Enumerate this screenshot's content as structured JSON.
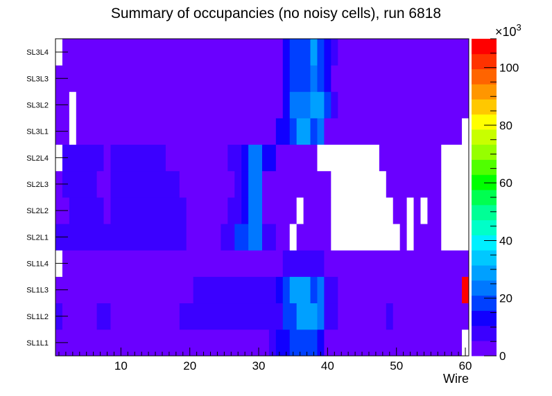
{
  "chart_data": {
    "type": "heatmap",
    "title": "Summary of occupancies (no noisy cells), run 6818",
    "xlabel": "Wire",
    "ylabel": "",
    "x_range": [
      0.5,
      60.5
    ],
    "x_ticks": [
      "10",
      "20",
      "30",
      "40",
      "50",
      "60"
    ],
    "y_categories": [
      "SL1L1",
      "SL1L2",
      "SL1L3",
      "SL1L4",
      "SL2L1",
      "SL2L2",
      "SL2L3",
      "SL2L4",
      "SL3L1",
      "SL3L2",
      "SL3L3",
      "SL3L4"
    ],
    "z_range": [
      0,
      110000
    ],
    "z_multiplier_label": "×10",
    "z_multiplier_exponent": "3",
    "z_ticks": [
      "0",
      "20",
      "40",
      "60",
      "80",
      "100"
    ],
    "empty_color": "#ffffff",
    "palette": [
      "#6a00ff",
      "#3b00ff",
      "#1100ff",
      "#0040ff",
      "#0078ff",
      "#00a0ff",
      "#00c8ff",
      "#00f0ff",
      "#00ffc8",
      "#00ff96",
      "#00ff50",
      "#00ff00",
      "#50ff00",
      "#96ff00",
      "#c8ff00",
      "#ffff00",
      "#ffc800",
      "#ff9600",
      "#ff6400",
      "#ff3200",
      "#ff0000"
    ],
    "rows": {
      "SL1L1": [
        [
          1,
          31,
          0
        ],
        [
          32,
          32,
          1
        ],
        [
          33,
          34,
          2
        ],
        [
          35,
          38,
          3
        ],
        [
          39,
          39,
          2
        ],
        [
          40,
          59,
          0
        ],
        [
          60,
          60,
          -1
        ]
      ],
      "SL1L2": [
        [
          1,
          1,
          1
        ],
        [
          2,
          6,
          0
        ],
        [
          7,
          8,
          1
        ],
        [
          9,
          18,
          0
        ],
        [
          19,
          19,
          1
        ],
        [
          20,
          33,
          1
        ],
        [
          34,
          35,
          3
        ],
        [
          36,
          38,
          5
        ],
        [
          39,
          39,
          4
        ],
        [
          40,
          41,
          1
        ],
        [
          42,
          48,
          0
        ],
        [
          49,
          49,
          1
        ],
        [
          50,
          60,
          0
        ]
      ],
      "SL1L3": [
        [
          1,
          20,
          0
        ],
        [
          21,
          32,
          1
        ],
        [
          33,
          33,
          2
        ],
        [
          34,
          34,
          3
        ],
        [
          35,
          37,
          5
        ],
        [
          38,
          38,
          3
        ],
        [
          39,
          39,
          4
        ],
        [
          40,
          41,
          1
        ],
        [
          42,
          59,
          0
        ],
        [
          60,
          60,
          20
        ]
      ],
      "SL1L4": [
        [
          1,
          1,
          -1
        ],
        [
          2,
          33,
          0
        ],
        [
          34,
          39,
          1
        ],
        [
          40,
          60,
          0
        ]
      ],
      "SL2L1": [
        [
          1,
          19,
          1
        ],
        [
          20,
          24,
          0
        ],
        [
          25,
          26,
          1
        ],
        [
          27,
          28,
          3
        ],
        [
          29,
          30,
          4
        ],
        [
          31,
          32,
          1
        ],
        [
          33,
          34,
          0
        ],
        [
          35,
          35,
          -1
        ],
        [
          36,
          40,
          0
        ],
        [
          41,
          50,
          -1
        ],
        [
          51,
          51,
          0
        ],
        [
          52,
          52,
          -1
        ],
        [
          53,
          56,
          0
        ],
        [
          57,
          60,
          -1
        ]
      ],
      "SL2L2": [
        [
          1,
          2,
          0
        ],
        [
          3,
          7,
          1
        ],
        [
          8,
          8,
          0
        ],
        [
          9,
          19,
          1
        ],
        [
          20,
          25,
          0
        ],
        [
          26,
          27,
          1
        ],
        [
          28,
          28,
          2
        ],
        [
          29,
          30,
          4
        ],
        [
          31,
          35,
          0
        ],
        [
          36,
          36,
          -1
        ],
        [
          37,
          40,
          0
        ],
        [
          41,
          49,
          -1
        ],
        [
          50,
          51,
          0
        ],
        [
          52,
          52,
          -1
        ],
        [
          53,
          53,
          0
        ],
        [
          54,
          54,
          -1
        ],
        [
          55,
          56,
          0
        ],
        [
          57,
          60,
          -1
        ]
      ],
      "SL2L3": [
        [
          1,
          1,
          0
        ],
        [
          2,
          6,
          1
        ],
        [
          7,
          8,
          0
        ],
        [
          9,
          18,
          1
        ],
        [
          19,
          26,
          0
        ],
        [
          27,
          27,
          1
        ],
        [
          28,
          28,
          2
        ],
        [
          29,
          30,
          4
        ],
        [
          31,
          40,
          0
        ],
        [
          41,
          48,
          -1
        ],
        [
          49,
          56,
          0
        ],
        [
          57,
          60,
          -1
        ]
      ],
      "SL2L4": [
        [
          1,
          1,
          -1
        ],
        [
          2,
          7,
          1
        ],
        [
          8,
          8,
          0
        ],
        [
          9,
          16,
          1
        ],
        [
          17,
          25,
          0
        ],
        [
          26,
          27,
          1
        ],
        [
          28,
          28,
          2
        ],
        [
          29,
          30,
          4
        ],
        [
          31,
          32,
          2
        ],
        [
          33,
          38,
          0
        ],
        [
          39,
          47,
          -1
        ],
        [
          48,
          56,
          0
        ],
        [
          57,
          60,
          -1
        ]
      ],
      "SL3L1": [
        [
          1,
          2,
          0
        ],
        [
          3,
          3,
          -1
        ],
        [
          4,
          32,
          0
        ],
        [
          33,
          34,
          2
        ],
        [
          35,
          35,
          3
        ],
        [
          36,
          37,
          5
        ],
        [
          38,
          38,
          3
        ],
        [
          39,
          39,
          4
        ],
        [
          40,
          59,
          0
        ],
        [
          60,
          60,
          -1
        ]
      ],
      "SL3L2": [
        [
          1,
          2,
          0
        ],
        [
          3,
          3,
          -1
        ],
        [
          4,
          33,
          0
        ],
        [
          34,
          34,
          2
        ],
        [
          35,
          37,
          4
        ],
        [
          38,
          39,
          5
        ],
        [
          40,
          40,
          3
        ],
        [
          41,
          41,
          1
        ],
        [
          42,
          60,
          0
        ]
      ],
      "SL3L3": [
        [
          1,
          33,
          0
        ],
        [
          34,
          34,
          2
        ],
        [
          35,
          37,
          3
        ],
        [
          38,
          38,
          4
        ],
        [
          39,
          39,
          3
        ],
        [
          40,
          40,
          2
        ],
        [
          41,
          60,
          0
        ]
      ],
      "SL3L4": [
        [
          1,
          1,
          -1
        ],
        [
          2,
          33,
          0
        ],
        [
          34,
          34,
          2
        ],
        [
          35,
          37,
          3
        ],
        [
          38,
          38,
          5
        ],
        [
          39,
          39,
          3
        ],
        [
          40,
          40,
          2
        ],
        [
          41,
          41,
          1
        ],
        [
          42,
          60,
          0
        ]
      ]
    }
  }
}
